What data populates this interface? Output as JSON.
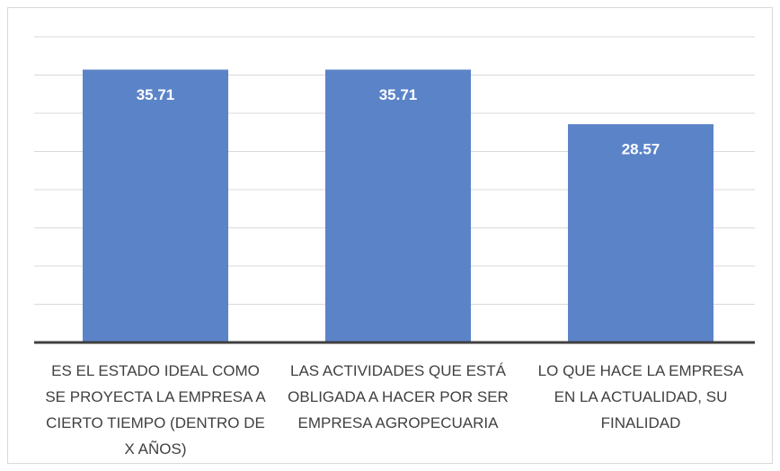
{
  "chart_data": {
    "type": "bar",
    "categories": [
      "ES EL ESTADO IDEAL COMO SE PROYECTA LA EMPRESA A CIERTO TIEMPO (DENTRO DE X AÑOS)",
      "LAS ACTIVIDADES QUE ESTÁ OBLIGADA A HACER POR SER EMPRESA AGROPECUARIA",
      "LO QUE HACE LA EMPRESA EN LA ACTUALIDAD, SU FINALIDAD"
    ],
    "values": [
      35.71,
      35.71,
      28.57
    ],
    "color": "#5b84c8",
    "ylim": [
      0,
      40
    ],
    "yticks": [
      0,
      5,
      10,
      15,
      20,
      25,
      30,
      35,
      40
    ],
    "grid": true
  }
}
